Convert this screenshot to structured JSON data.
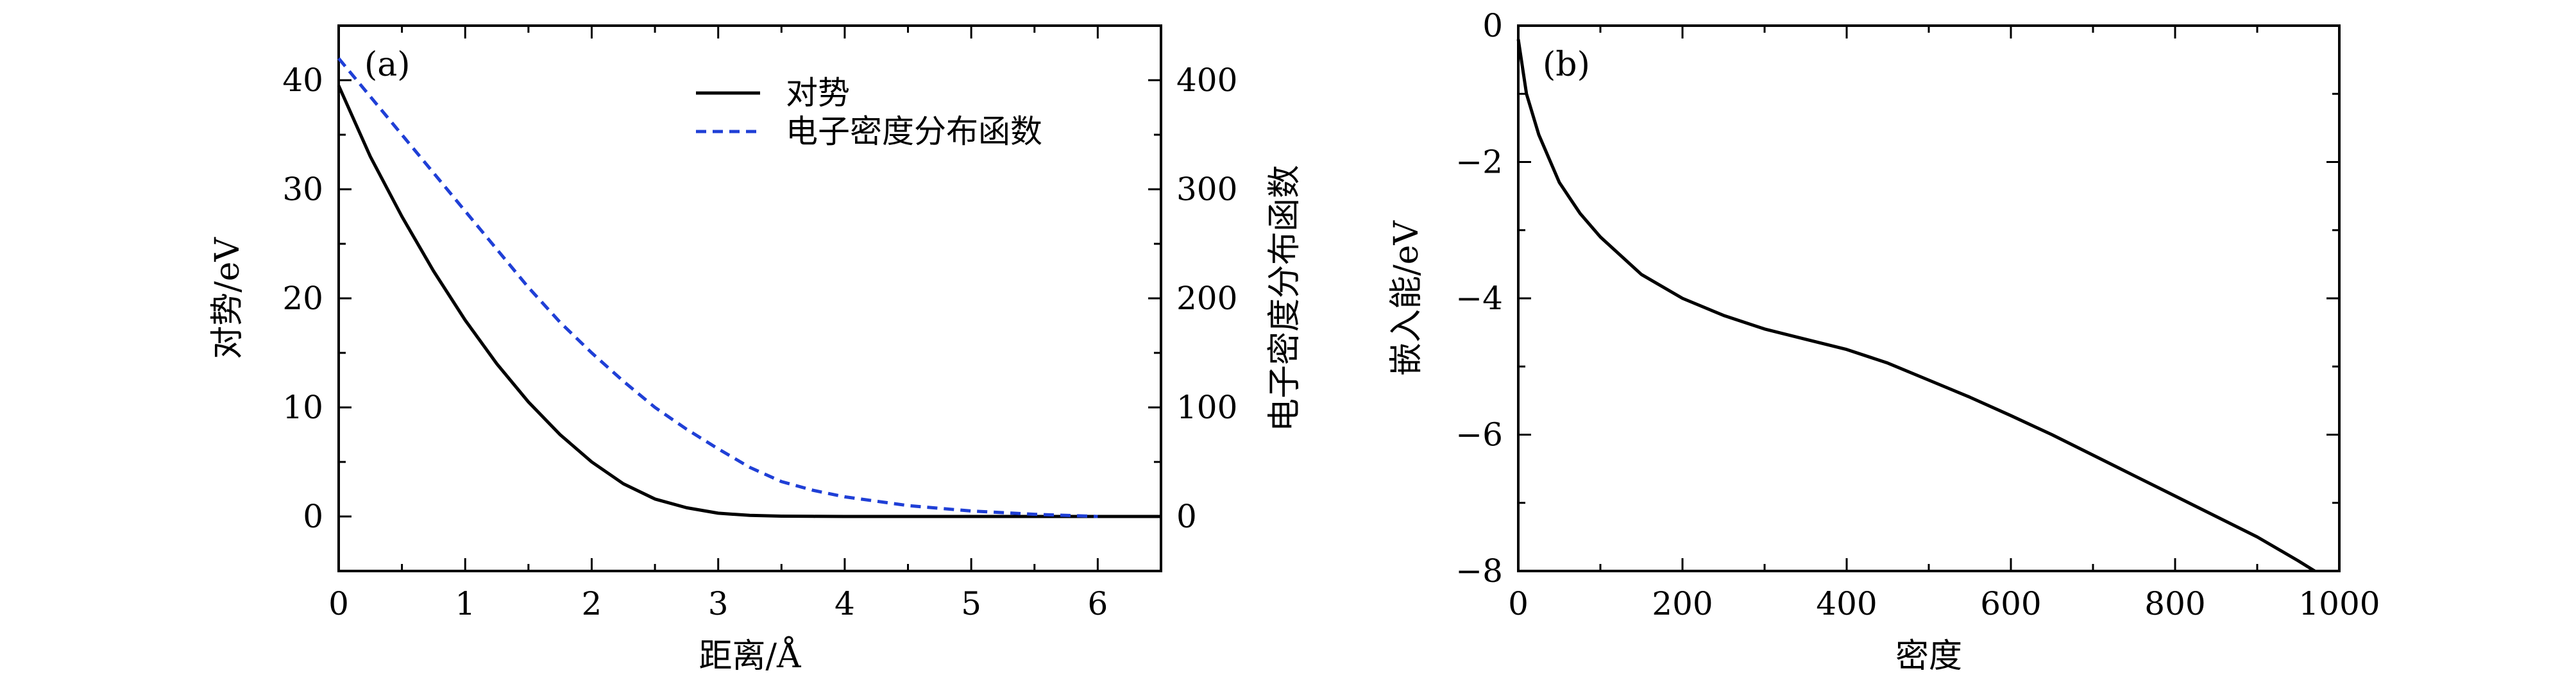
{
  "chart_data": [
    {
      "type": "line",
      "panel_label": "(a)",
      "xlabel": "距离/Å",
      "ylabel": "对势/eV",
      "y2label": "电子密度分布函数",
      "xlim": [
        0,
        6.5
      ],
      "ylim": [
        -5,
        45
      ],
      "y2lim": [
        -50,
        450
      ],
      "xticks": [
        "0",
        "1",
        "2",
        "3",
        "4",
        "5",
        "6"
      ],
      "yticks": [
        "0",
        "10",
        "20",
        "30",
        "40"
      ],
      "y2ticks": [
        "0",
        "100",
        "200",
        "300",
        "400"
      ],
      "grid": false,
      "legend_position": "top-right",
      "series": [
        {
          "name": "对势",
          "axis": "left",
          "color": "#000000",
          "style": "solid",
          "x": [
            0,
            0.25,
            0.5,
            0.75,
            1.0,
            1.25,
            1.5,
            1.75,
            2.0,
            2.25,
            2.5,
            2.75,
            3.0,
            3.25,
            3.5,
            3.75,
            4.0,
            4.5,
            5.0,
            5.5,
            6.0,
            6.5
          ],
          "y": [
            39.5,
            33.0,
            27.5,
            22.5,
            18.0,
            14.0,
            10.5,
            7.5,
            5.0,
            3.0,
            1.6,
            0.8,
            0.3,
            0.1,
            0.03,
            0.01,
            0,
            0,
            0,
            0,
            0,
            0
          ]
        },
        {
          "name": "电子密度分布函数",
          "axis": "right",
          "color": "#1f3fd6",
          "style": "dashed",
          "x": [
            0,
            0.25,
            0.5,
            0.75,
            1.0,
            1.25,
            1.5,
            1.75,
            2.0,
            2.25,
            2.5,
            2.75,
            3.0,
            3.25,
            3.5,
            3.75,
            4.0,
            4.5,
            5.0,
            5.5,
            6.0
          ],
          "y": [
            420,
            385,
            350,
            315,
            280,
            245,
            210,
            178,
            150,
            124,
            100,
            80,
            62,
            45,
            32,
            24,
            18,
            10,
            5,
            2,
            0
          ]
        }
      ]
    },
    {
      "type": "line",
      "panel_label": "(b)",
      "xlabel": "密度",
      "ylabel": "嵌入能/eV",
      "xlim": [
        0,
        1000
      ],
      "ylim": [
        -8,
        0
      ],
      "xticks": [
        "0",
        "200",
        "400",
        "600",
        "800",
        "1000"
      ],
      "yticks": [
        "0",
        "−2",
        "−4",
        "−6",
        "−8"
      ],
      "grid": false,
      "series": [
        {
          "color": "#000000",
          "style": "solid",
          "x": [
            0,
            10,
            25,
            50,
            75,
            100,
            150,
            200,
            250,
            300,
            350,
            400,
            450,
            500,
            550,
            600,
            650,
            700,
            750,
            800,
            850,
            900,
            950,
            970
          ],
          "y": [
            -0.2,
            -1.0,
            -1.6,
            -2.3,
            -2.75,
            -3.1,
            -3.65,
            -4.0,
            -4.25,
            -4.45,
            -4.6,
            -4.75,
            -4.95,
            -5.2,
            -5.45,
            -5.72,
            -6.0,
            -6.3,
            -6.6,
            -6.9,
            -7.2,
            -7.5,
            -7.85,
            -8.0
          ]
        }
      ]
    }
  ]
}
